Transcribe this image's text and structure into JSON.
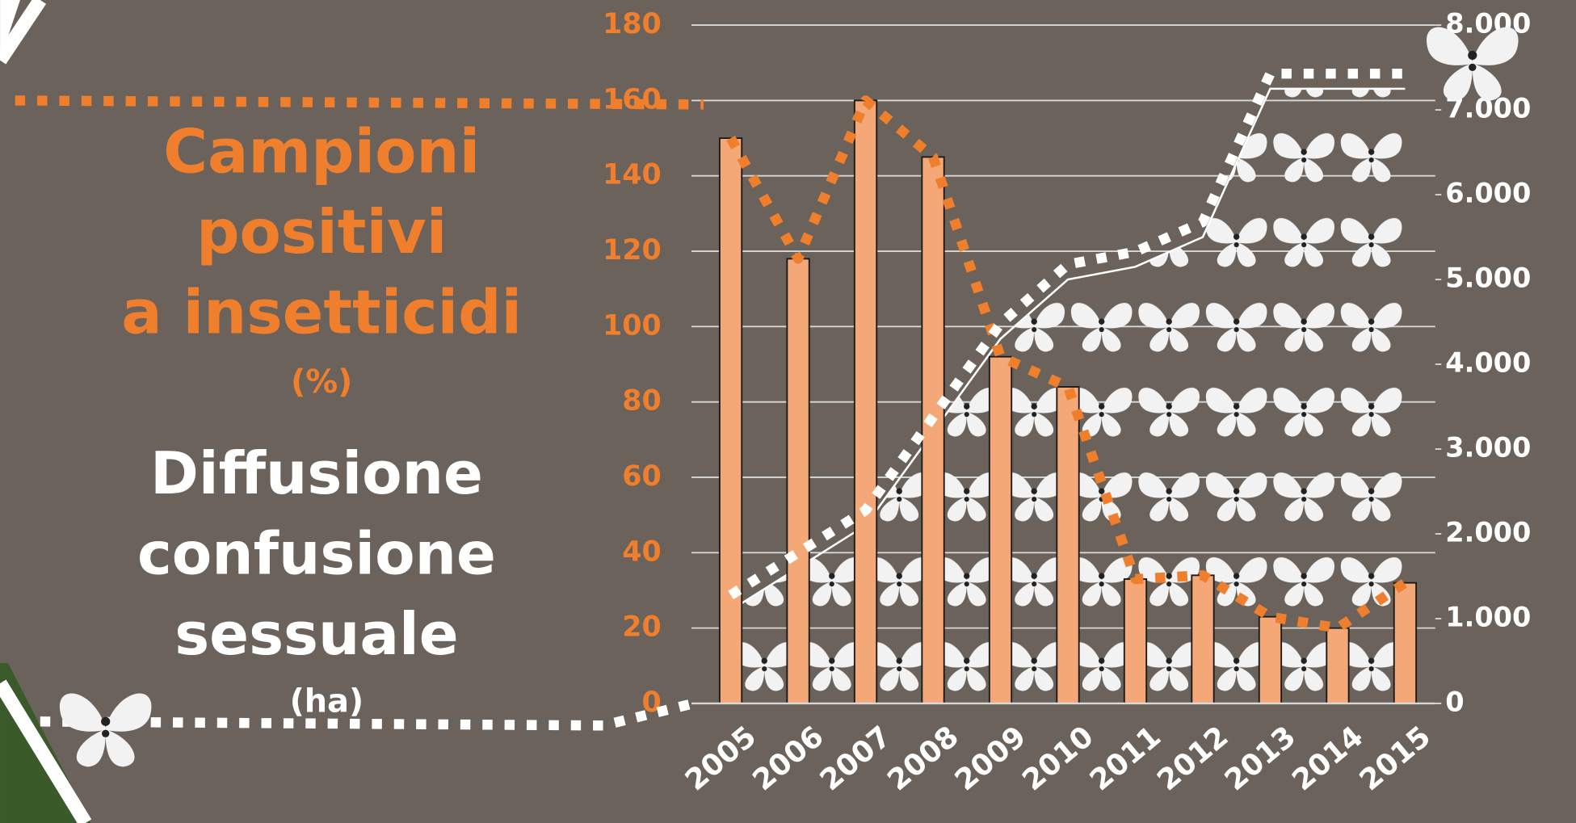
{
  "chart_data": {
    "type": "bar-area",
    "left_label": {
      "lines": [
        "Campioni",
        "positivi",
        "a insetticidi"
      ],
      "unit": "(%)"
    },
    "right_label": {
      "lines": [
        "Diffusione",
        "confusione",
        "sessuale"
      ],
      "unit": "(ha)"
    },
    "categories": [
      "2005",
      "2006",
      "2007",
      "2008",
      "2009",
      "2010",
      "2011",
      "2012",
      "2013",
      "2014",
      "2015"
    ],
    "series": [
      {
        "color": "#f4a877",
        "values": [
          150,
          118,
          160,
          145,
          92,
          84,
          33,
          34,
          23,
          20,
          32
        ]
      },
      {
        "color": "#ffffff",
        "axis": "y2",
        "values": [
          1100,
          1600,
          2100,
          3200,
          4300,
          5000,
          5150,
          5500,
          7250,
          7250,
          7250
        ]
      }
    ],
    "ylim": [
      0,
      180
    ],
    "yticks": [
      0,
      20,
      40,
      60,
      80,
      100,
      120,
      140,
      160,
      180
    ],
    "y2lim": [
      0,
      8000
    ],
    "y2ticks": [
      0,
      {
        "value": 1000,
        "label": "1.000"
      },
      {
        "value": 2000,
        "label": "2.000"
      },
      {
        "value": 3000,
        "label": "3.000"
      },
      {
        "value": 4000,
        "label": "4.000"
      },
      {
        "value": 5000,
        "label": "5.000"
      },
      {
        "value": 6000,
        "label": "6.000"
      },
      {
        "value": 7000,
        "label": "7.000"
      },
      {
        "value": 8000,
        "label": "8.000"
      }
    ],
    "grid": true
  }
}
